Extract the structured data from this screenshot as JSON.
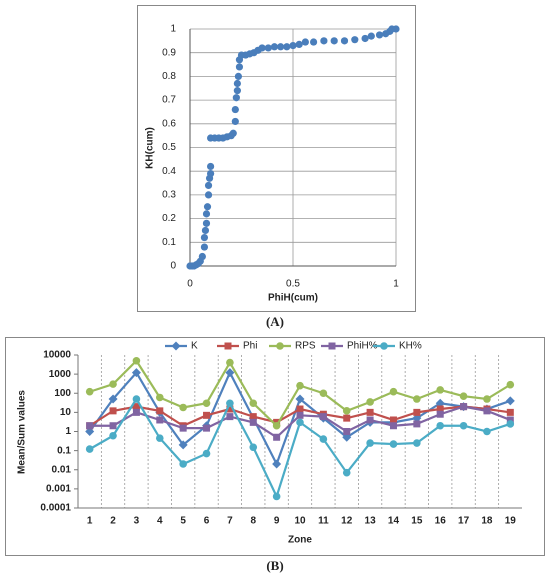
{
  "chart_data": [
    {
      "type": "scatter",
      "caption": "(A)",
      "xlabel": "PhiH(cum)",
      "ylabel": "KH(cum)",
      "x": [
        0,
        0.01,
        0.02,
        0.03,
        0.04,
        0.05,
        0.06,
        0.07,
        0.07,
        0.075,
        0.08,
        0.08,
        0.085,
        0.09,
        0.09,
        0.095,
        0.1,
        0.1,
        0.1,
        0.12,
        0.14,
        0.16,
        0.18,
        0.2,
        0.21,
        0.22,
        0.22,
        0.225,
        0.23,
        0.23,
        0.235,
        0.24,
        0.24,
        0.25,
        0.27,
        0.29,
        0.31,
        0.33,
        0.35,
        0.38,
        0.41,
        0.44,
        0.47,
        0.5,
        0.53,
        0.56,
        0.6,
        0.65,
        0.7,
        0.75,
        0.8,
        0.85,
        0.88,
        0.92,
        0.95,
        0.97,
        0.98,
        1
      ],
      "values": [
        0,
        0,
        0,
        0.005,
        0.01,
        0.02,
        0.04,
        0.08,
        0.12,
        0.15,
        0.18,
        0.22,
        0.25,
        0.3,
        0.34,
        0.37,
        0.39,
        0.42,
        0.54,
        0.54,
        0.54,
        0.54,
        0.545,
        0.55,
        0.56,
        0.61,
        0.66,
        0.71,
        0.74,
        0.77,
        0.8,
        0.84,
        0.87,
        0.89,
        0.89,
        0.895,
        0.9,
        0.91,
        0.92,
        0.92,
        0.925,
        0.925,
        0.925,
        0.93,
        0.935,
        0.945,
        0.945,
        0.95,
        0.95,
        0.95,
        0.955,
        0.96,
        0.97,
        0.975,
        0.98,
        0.99,
        1,
        1
      ],
      "color": "#4a7ebb",
      "xlim": [
        0,
        1
      ],
      "xticks": [
        0,
        0.5,
        1
      ],
      "ylim": [
        0,
        1
      ],
      "yticks": [
        0,
        0.1,
        0.2,
        0.3,
        0.4,
        0.5,
        0.6,
        0.7,
        0.8,
        0.9,
        1
      ],
      "grid": true
    },
    {
      "type": "line",
      "caption": "(B)",
      "xlabel": "Zone",
      "ylabel": "Mean/Sum values",
      "log_scale": true,
      "legend": "top",
      "categories": [
        "1",
        "2",
        "3",
        "4",
        "5",
        "6",
        "7",
        "8",
        "9",
        "10",
        "11",
        "12",
        "13",
        "14",
        "15",
        "16",
        "17",
        "18",
        "19"
      ],
      "ylim": [
        0.0001,
        10000
      ],
      "yticks": [
        0.0001,
        0.001,
        0.01,
        0.1,
        1,
        10,
        100,
        1000,
        10000
      ],
      "series": [
        {
          "name": "K",
          "color": "#4f81bd",
          "marker": "diamond",
          "values": [
            1,
            50,
            1200,
            10,
            0.2,
            2,
            1200,
            5,
            0.02,
            50,
            5,
            0.5,
            3,
            3,
            5,
            30,
            20,
            15,
            40
          ]
        },
        {
          "name": "Phi",
          "color": "#c0504d",
          "marker": "square",
          "values": [
            2,
            12,
            20,
            12,
            2,
            7,
            15,
            6,
            3,
            15,
            8,
            5,
            10,
            4,
            10,
            15,
            20,
            15,
            10
          ]
        },
        {
          "name": "RPS",
          "color": "#9bbb59",
          "marker": "circle",
          "values": [
            120,
            300,
            5000,
            60,
            18,
            30,
            4000,
            30,
            2,
            250,
            100,
            12,
            35,
            120,
            50,
            150,
            70,
            50,
            280
          ]
        },
        {
          "name": "PhiH%",
          "color": "#8064a2",
          "marker": "square",
          "values": [
            2,
            2,
            10,
            4,
            1.5,
            1.5,
            6,
            3,
            0.5,
            7,
            6,
            1,
            4,
            2,
            2.5,
            8,
            20,
            12,
            4
          ]
        },
        {
          "name": "KH%",
          "color": "#4bacc6",
          "marker": "circle",
          "values": [
            0.12,
            0.6,
            50,
            0.45,
            0.02,
            0.07,
            30,
            0.15,
            0.0004,
            3,
            0.4,
            0.007,
            0.25,
            0.22,
            0.25,
            2,
            2,
            1,
            2.5
          ]
        }
      ]
    }
  ]
}
